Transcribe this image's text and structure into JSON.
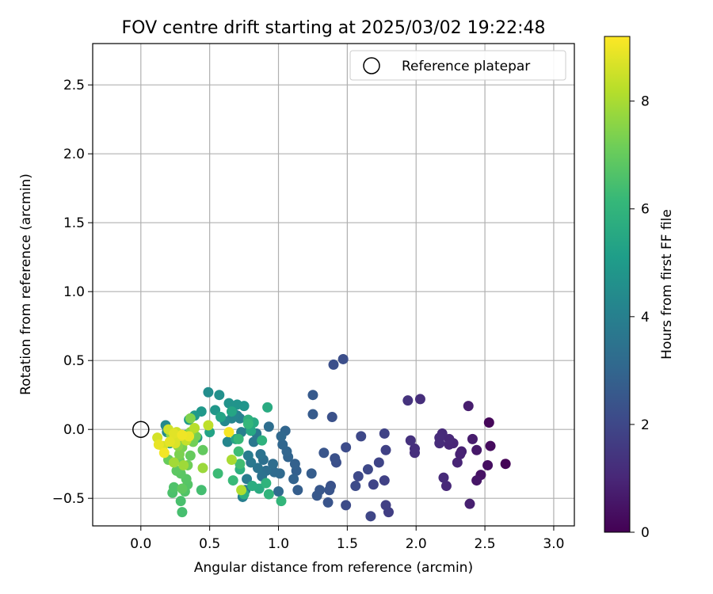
{
  "chart_data": {
    "type": "scatter",
    "title": "FOV centre drift starting at 2025/03/02 19:22:48",
    "xlabel": "Angular distance from reference (arcmin)",
    "ylabel": "Rotation from reference (arcmin)",
    "xlim": [
      -0.35,
      3.15
    ],
    "ylim": [
      -0.7,
      2.8
    ],
    "xticks": [
      0.0,
      0.5,
      1.0,
      1.5,
      2.0,
      2.5,
      3.0
    ],
    "yticks": [
      -0.5,
      0.0,
      0.5,
      1.0,
      1.5,
      2.0,
      2.5
    ],
    "xtick_labels": [
      "0.0",
      "0.5",
      "1.0",
      "1.5",
      "2.0",
      "2.5",
      "3.0"
    ],
    "ytick_labels": [
      "−0.5",
      "0.0",
      "0.5",
      "1.0",
      "1.5",
      "2.0",
      "2.5"
    ],
    "grid": true,
    "legend": {
      "position": "top-right",
      "entries": [
        "Reference platepar"
      ]
    },
    "reference_point": {
      "x": 0.0,
      "y": 0.0
    },
    "colormap": "viridis",
    "colorbar": {
      "label": "Hours from first FF file",
      "range": [
        0,
        9.2
      ],
      "ticks": [
        0,
        2,
        4,
        6,
        8
      ],
      "tick_labels": [
        "0",
        "2",
        "4",
        "6",
        "8"
      ],
      "stops": [
        "#440154",
        "#482878",
        "#3e4989",
        "#31688e",
        "#26828e",
        "#1f9e89",
        "#35b779",
        "#6ece58",
        "#b5de2b",
        "#fde725"
      ]
    },
    "points": [
      {
        "x": 2.65,
        "y": -0.25,
        "h": 0.05
      },
      {
        "x": 2.53,
        "y": 0.05,
        "h": 0.15
      },
      {
        "x": 2.54,
        "y": -0.12,
        "h": 0.25
      },
      {
        "x": 2.52,
        "y": -0.26,
        "h": 0.35
      },
      {
        "x": 2.47,
        "y": -0.33,
        "h": 0.45
      },
      {
        "x": 2.44,
        "y": -0.37,
        "h": 0.55
      },
      {
        "x": 2.44,
        "y": -0.15,
        "h": 0.6
      },
      {
        "x": 2.41,
        "y": -0.07,
        "h": 0.7
      },
      {
        "x": 2.38,
        "y": 0.17,
        "h": 0.75
      },
      {
        "x": 2.39,
        "y": -0.54,
        "h": 0.8
      },
      {
        "x": 2.33,
        "y": -0.16,
        "h": 0.85
      },
      {
        "x": 2.32,
        "y": -0.18,
        "h": 0.9
      },
      {
        "x": 2.3,
        "y": -0.24,
        "h": 0.95
      },
      {
        "x": 2.27,
        "y": -0.1,
        "h": 1.0
      },
      {
        "x": 2.24,
        "y": -0.11,
        "h": 1.0
      },
      {
        "x": 2.24,
        "y": -0.07,
        "h": 1.05
      },
      {
        "x": 2.22,
        "y": -0.41,
        "h": 1.05
      },
      {
        "x": 2.2,
        "y": -0.35,
        "h": 1.1
      },
      {
        "x": 2.19,
        "y": -0.03,
        "h": 1.1
      },
      {
        "x": 2.17,
        "y": -0.06,
        "h": 1.15
      },
      {
        "x": 2.17,
        "y": -0.1,
        "h": 1.15
      },
      {
        "x": 2.03,
        "y": 0.22,
        "h": 1.2
      },
      {
        "x": 1.99,
        "y": -0.14,
        "h": 1.25
      },
      {
        "x": 1.99,
        "y": -0.17,
        "h": 1.25
      },
      {
        "x": 1.96,
        "y": -0.08,
        "h": 1.3
      },
      {
        "x": 1.94,
        "y": 0.21,
        "h": 1.35
      },
      {
        "x": 1.8,
        "y": -0.6,
        "h": 1.7
      },
      {
        "x": 1.78,
        "y": -0.55,
        "h": 1.75
      },
      {
        "x": 1.78,
        "y": -0.15,
        "h": 1.8
      },
      {
        "x": 1.77,
        "y": -0.37,
        "h": 1.8
      },
      {
        "x": 1.77,
        "y": -0.03,
        "h": 1.85
      },
      {
        "x": 1.73,
        "y": -0.24,
        "h": 1.9
      },
      {
        "x": 1.69,
        "y": -0.4,
        "h": 1.9
      },
      {
        "x": 1.67,
        "y": -0.63,
        "h": 1.95
      },
      {
        "x": 1.65,
        "y": -0.29,
        "h": 2.0
      },
      {
        "x": 1.6,
        "y": -0.05,
        "h": 2.0
      },
      {
        "x": 1.58,
        "y": -0.34,
        "h": 2.05
      },
      {
        "x": 1.56,
        "y": -0.41,
        "h": 2.1
      },
      {
        "x": 1.49,
        "y": -0.55,
        "h": 2.1
      },
      {
        "x": 1.49,
        "y": -0.13,
        "h": 2.15
      },
      {
        "x": 1.47,
        "y": 0.51,
        "h": 2.2
      },
      {
        "x": 1.4,
        "y": 0.47,
        "h": 2.25
      },
      {
        "x": 1.42,
        "y": -0.24,
        "h": 2.25
      },
      {
        "x": 1.41,
        "y": -0.21,
        "h": 2.3
      },
      {
        "x": 1.39,
        "y": 0.09,
        "h": 2.3
      },
      {
        "x": 1.38,
        "y": -0.41,
        "h": 2.35
      },
      {
        "x": 1.37,
        "y": -0.44,
        "h": 2.4
      },
      {
        "x": 1.36,
        "y": -0.53,
        "h": 2.4
      },
      {
        "x": 1.33,
        "y": -0.17,
        "h": 2.45
      },
      {
        "x": 1.3,
        "y": -0.44,
        "h": 2.5
      },
      {
        "x": 1.28,
        "y": -0.48,
        "h": 2.55
      },
      {
        "x": 1.25,
        "y": 0.25,
        "h": 2.6
      },
      {
        "x": 1.25,
        "y": 0.11,
        "h": 2.65
      },
      {
        "x": 1.24,
        "y": -0.32,
        "h": 2.7
      },
      {
        "x": 1.14,
        "y": -0.44,
        "h": 2.75
      },
      {
        "x": 1.13,
        "y": -0.3,
        "h": 2.8
      },
      {
        "x": 1.12,
        "y": -0.25,
        "h": 2.85
      },
      {
        "x": 1.11,
        "y": -0.36,
        "h": 2.9
      },
      {
        "x": 1.07,
        "y": -0.2,
        "h": 2.95
      },
      {
        "x": 1.06,
        "y": -0.16,
        "h": 3.0
      },
      {
        "x": 1.05,
        "y": -0.01,
        "h": 3.0
      },
      {
        "x": 1.03,
        "y": -0.11,
        "h": 3.05
      },
      {
        "x": 1.02,
        "y": -0.05,
        "h": 3.1
      },
      {
        "x": 1.01,
        "y": -0.32,
        "h": 3.15
      },
      {
        "x": 1.0,
        "y": -0.45,
        "h": 3.2
      },
      {
        "x": 0.97,
        "y": -0.31,
        "h": 3.2
      },
      {
        "x": 0.96,
        "y": -0.25,
        "h": 3.25
      },
      {
        "x": 0.93,
        "y": 0.02,
        "h": 3.3
      },
      {
        "x": 0.91,
        "y": -0.3,
        "h": 3.35
      },
      {
        "x": 0.89,
        "y": -0.22,
        "h": 3.4
      },
      {
        "x": 0.88,
        "y": -0.34,
        "h": 3.45
      },
      {
        "x": 0.87,
        "y": -0.18,
        "h": 3.5
      },
      {
        "x": 0.85,
        "y": -0.28,
        "h": 3.55
      },
      {
        "x": 0.84,
        "y": -0.03,
        "h": 3.6
      },
      {
        "x": 0.82,
        "y": -0.09,
        "h": 3.65
      },
      {
        "x": 0.8,
        "y": -0.24,
        "h": 3.7
      },
      {
        "x": 0.79,
        "y": 0.02,
        "h": 3.75
      },
      {
        "x": 0.78,
        "y": -0.19,
        "h": 3.8
      },
      {
        "x": 0.77,
        "y": -0.36,
        "h": 3.85
      },
      {
        "x": 0.76,
        "y": -0.44,
        "h": 3.9
      },
      {
        "x": 0.74,
        "y": -0.49,
        "h": 3.95
      },
      {
        "x": 0.73,
        "y": -0.02,
        "h": 4.0
      },
      {
        "x": 0.72,
        "y": 0.08,
        "h": 4.05
      },
      {
        "x": 0.7,
        "y": 0.1,
        "h": 4.1
      },
      {
        "x": 0.68,
        "y": 0.11,
        "h": 4.15
      },
      {
        "x": 0.66,
        "y": 0.08,
        "h": 4.2
      },
      {
        "x": 0.63,
        "y": -0.09,
        "h": 4.25
      },
      {
        "x": 0.61,
        "y": 0.06,
        "h": 4.3
      },
      {
        "x": 0.18,
        "y": 0.03,
        "h": 4.35
      },
      {
        "x": 0.19,
        "y": -0.02,
        "h": 4.4
      },
      {
        "x": 0.49,
        "y": 0.27,
        "h": 4.5
      },
      {
        "x": 0.57,
        "y": 0.25,
        "h": 4.6
      },
      {
        "x": 0.64,
        "y": 0.19,
        "h": 4.7
      },
      {
        "x": 0.7,
        "y": 0.18,
        "h": 4.75
      },
      {
        "x": 0.75,
        "y": 0.17,
        "h": 4.8
      },
      {
        "x": 0.54,
        "y": 0.14,
        "h": 4.85
      },
      {
        "x": 0.44,
        "y": 0.13,
        "h": 4.9
      },
      {
        "x": 0.39,
        "y": 0.1,
        "h": 4.95
      },
      {
        "x": 0.35,
        "y": 0.07,
        "h": 5.0
      },
      {
        "x": 0.41,
        "y": -0.06,
        "h": 5.05
      },
      {
        "x": 0.33,
        "y": -0.04,
        "h": 5.1
      },
      {
        "x": 0.28,
        "y": -0.1,
        "h": 5.15
      },
      {
        "x": 0.21,
        "y": -0.1,
        "h": 5.2
      },
      {
        "x": 0.5,
        "y": -0.02,
        "h": 5.3
      },
      {
        "x": 0.58,
        "y": 0.09,
        "h": 5.35
      },
      {
        "x": 0.66,
        "y": 0.13,
        "h": 5.4
      },
      {
        "x": 0.69,
        "y": -0.07,
        "h": 5.45
      },
      {
        "x": 0.8,
        "y": -0.01,
        "h": 5.5
      },
      {
        "x": 0.82,
        "y": 0.05,
        "h": 5.55
      },
      {
        "x": 0.92,
        "y": 0.16,
        "h": 5.6
      },
      {
        "x": 0.86,
        "y": -0.43,
        "h": 5.65
      },
      {
        "x": 0.81,
        "y": -0.41,
        "h": 5.7
      },
      {
        "x": 0.75,
        "y": -0.47,
        "h": 5.75
      },
      {
        "x": 0.72,
        "y": -0.29,
        "h": 5.8
      },
      {
        "x": 0.78,
        "y": 0.07,
        "h": 5.85
      },
      {
        "x": 0.88,
        "y": -0.08,
        "h": 5.9
      },
      {
        "x": 0.91,
        "y": -0.39,
        "h": 5.95
      },
      {
        "x": 0.93,
        "y": -0.47,
        "h": 6.0
      },
      {
        "x": 1.02,
        "y": -0.52,
        "h": 6.05
      },
      {
        "x": 0.78,
        "y": 0.04,
        "h": 6.1
      },
      {
        "x": 0.71,
        "y": -0.07,
        "h": 6.15
      },
      {
        "x": 0.67,
        "y": -0.37,
        "h": 6.2
      },
      {
        "x": 0.56,
        "y": -0.32,
        "h": 6.25
      },
      {
        "x": 0.71,
        "y": -0.16,
        "h": 6.3
      },
      {
        "x": 0.72,
        "y": -0.25,
        "h": 6.35
      },
      {
        "x": 0.44,
        "y": -0.44,
        "h": 6.4
      },
      {
        "x": 0.3,
        "y": -0.6,
        "h": 6.45
      },
      {
        "x": 0.29,
        "y": -0.52,
        "h": 6.5
      },
      {
        "x": 0.23,
        "y": -0.46,
        "h": 6.55
      },
      {
        "x": 0.24,
        "y": -0.42,
        "h": 6.6
      },
      {
        "x": 0.32,
        "y": -0.45,
        "h": 6.65
      },
      {
        "x": 0.34,
        "y": -0.4,
        "h": 6.7
      },
      {
        "x": 0.33,
        "y": -0.36,
        "h": 6.75
      },
      {
        "x": 0.29,
        "y": -0.32,
        "h": 6.8
      },
      {
        "x": 0.26,
        "y": -0.3,
        "h": 6.85
      },
      {
        "x": 0.3,
        "y": -0.43,
        "h": 6.9
      },
      {
        "x": 0.45,
        "y": -0.15,
        "h": 6.95
      },
      {
        "x": 0.36,
        "y": -0.19,
        "h": 7.0
      },
      {
        "x": 0.2,
        "y": -0.22,
        "h": 7.05
      },
      {
        "x": 0.28,
        "y": -0.22,
        "h": 7.1
      },
      {
        "x": 0.34,
        "y": -0.26,
        "h": 7.15
      },
      {
        "x": 0.38,
        "y": -0.09,
        "h": 7.2
      },
      {
        "x": 0.4,
        "y": -0.05,
        "h": 7.25
      },
      {
        "x": 0.3,
        "y": -0.13,
        "h": 7.3
      },
      {
        "x": 0.28,
        "y": -0.18,
        "h": 7.35
      },
      {
        "x": 0.36,
        "y": 0.08,
        "h": 7.4
      },
      {
        "x": 0.24,
        "y": -0.07,
        "h": 7.5
      },
      {
        "x": 0.27,
        "y": -0.12,
        "h": 7.55
      },
      {
        "x": 0.22,
        "y": -0.04,
        "h": 7.6
      },
      {
        "x": 0.36,
        "y": -0.02,
        "h": 7.65
      },
      {
        "x": 0.45,
        "y": -0.28,
        "h": 7.8
      },
      {
        "x": 0.31,
        "y": -0.26,
        "h": 7.85
      },
      {
        "x": 0.24,
        "y": -0.24,
        "h": 7.9
      },
      {
        "x": 0.66,
        "y": -0.22,
        "h": 8.0
      },
      {
        "x": 0.73,
        "y": -0.44,
        "h": 8.1
      },
      {
        "x": 0.39,
        "y": 0.01,
        "h": 8.2
      },
      {
        "x": 0.49,
        "y": 0.03,
        "h": 8.3
      },
      {
        "x": 0.33,
        "y": -0.08,
        "h": 8.4
      },
      {
        "x": 0.26,
        "y": -0.02,
        "h": 8.5
      },
      {
        "x": 0.2,
        "y": 0.0,
        "h": 8.55
      },
      {
        "x": 0.12,
        "y": -0.06,
        "h": 8.6
      },
      {
        "x": 0.16,
        "y": -0.12,
        "h": 8.65
      },
      {
        "x": 0.25,
        "y": -0.1,
        "h": 8.7
      },
      {
        "x": 0.29,
        "y": -0.05,
        "h": 8.75
      },
      {
        "x": 0.24,
        "y": -0.03,
        "h": 8.8
      },
      {
        "x": 0.21,
        "y": -0.09,
        "h": 8.85
      },
      {
        "x": 0.13,
        "y": -0.11,
        "h": 8.9
      },
      {
        "x": 0.35,
        "y": -0.05,
        "h": 8.95
      },
      {
        "x": 0.3,
        "y": -0.04,
        "h": 9.0
      },
      {
        "x": 0.17,
        "y": -0.17,
        "h": 9.05
      },
      {
        "x": 0.64,
        "y": -0.02,
        "h": 9.1
      }
    ]
  }
}
